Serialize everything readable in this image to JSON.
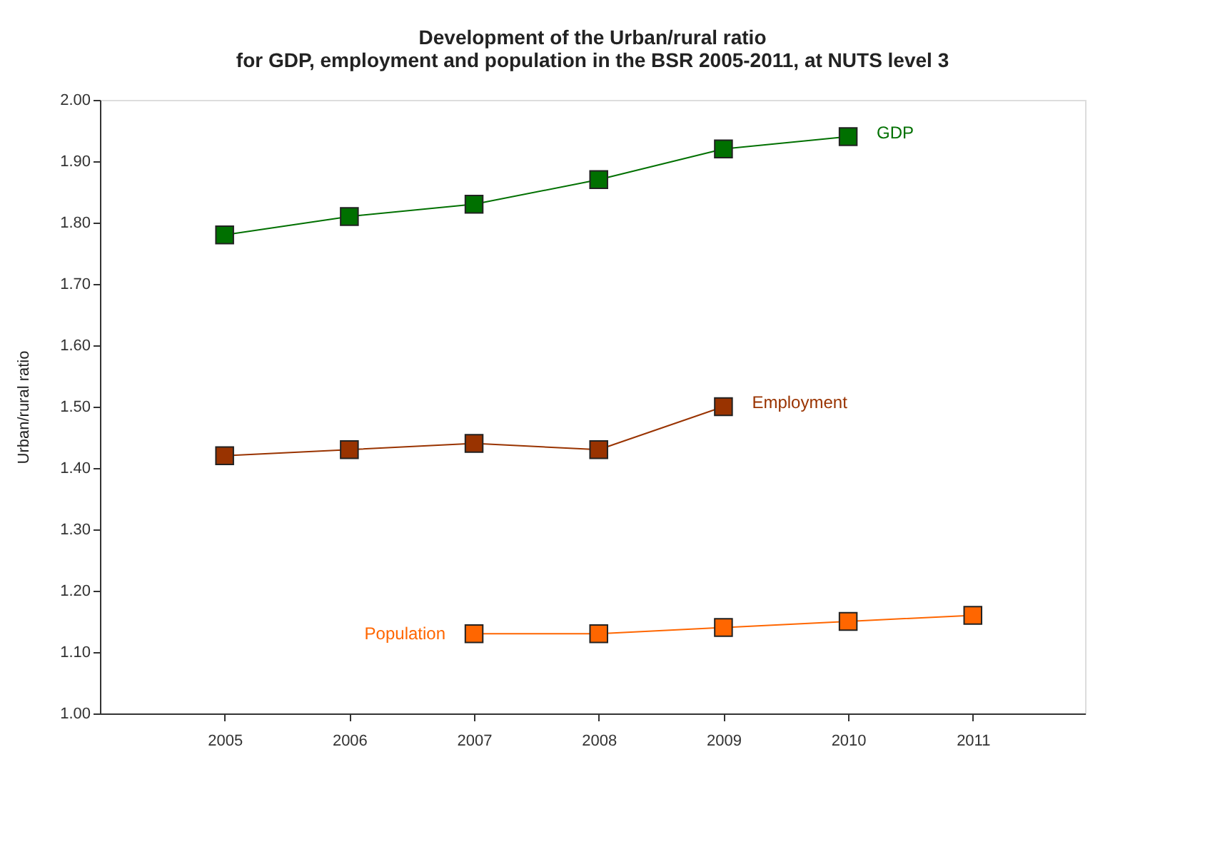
{
  "chart_data": {
    "type": "line",
    "title": [
      "Development of the Urban/rural ratio",
      "for GDP, employment and population in the BSR 2005-2011, at NUTS level 3"
    ],
    "ylabel": "Urban/rural ratio",
    "categories": [
      "2005",
      "2006",
      "2007",
      "2008",
      "2009",
      "2010",
      "2011"
    ],
    "series": [
      {
        "name": "GDP",
        "color": "#007000",
        "values": [
          1.78,
          1.81,
          1.83,
          1.87,
          1.92,
          1.94,
          null
        ]
      },
      {
        "name": "Employment",
        "color": "#993300",
        "values": [
          1.42,
          1.43,
          1.44,
          1.43,
          1.5,
          null,
          null
        ]
      },
      {
        "name": "Population",
        "color": "#ff6600",
        "values": [
          null,
          null,
          1.13,
          1.13,
          1.14,
          1.15,
          1.16
        ]
      }
    ],
    "ylim": [
      1.0,
      2.0
    ],
    "yticks": [
      {
        "value": 1.0,
        "label": "1.00"
      },
      {
        "value": 1.1,
        "label": "1.10"
      },
      {
        "value": 1.2,
        "label": "1.20"
      },
      {
        "value": 1.3,
        "label": "1.30"
      },
      {
        "value": 1.4,
        "label": "1.40"
      },
      {
        "value": 1.5,
        "label": "1.50"
      },
      {
        "value": 1.6,
        "label": "1.60"
      },
      {
        "value": 1.7,
        "label": "1.70"
      },
      {
        "value": 1.8,
        "label": "1.80"
      },
      {
        "value": 1.9,
        "label": "1.90"
      },
      {
        "value": 2.0,
        "label": "2.00"
      }
    ],
    "marker": "square",
    "line_style": "solid"
  }
}
